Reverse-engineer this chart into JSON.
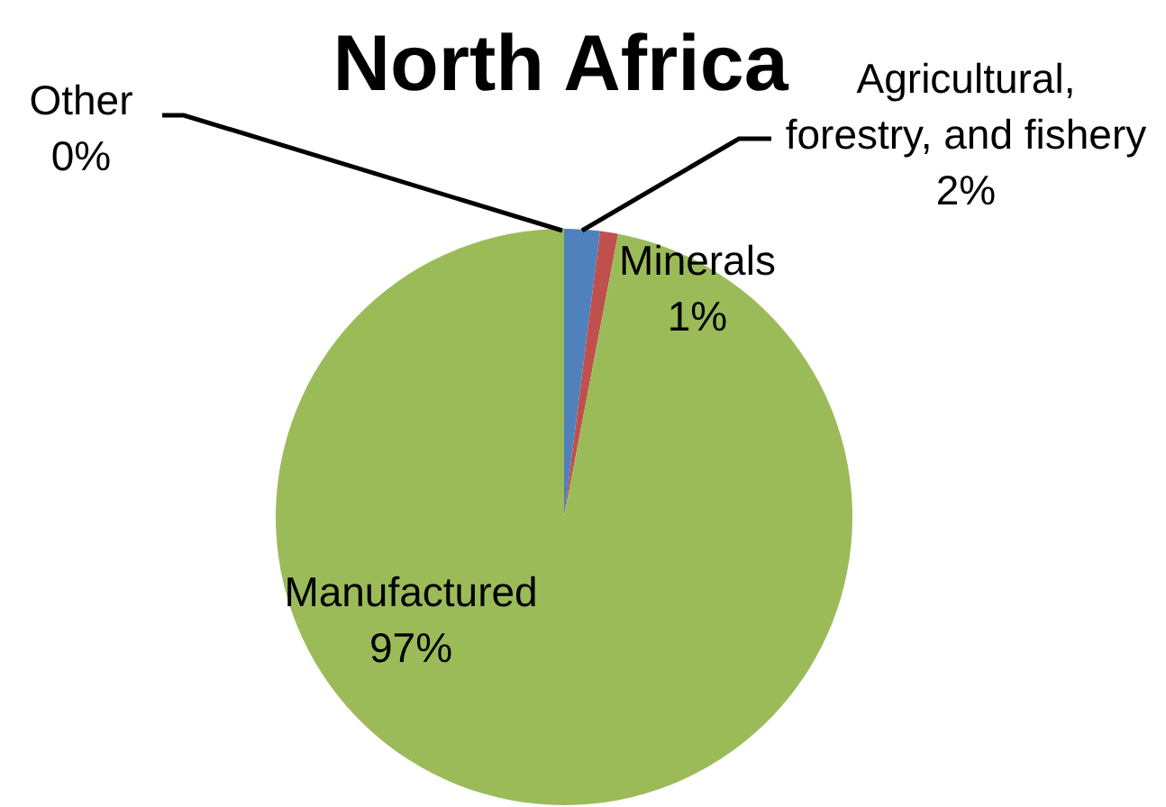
{
  "chart_data": {
    "type": "pie",
    "title": "North Africa",
    "categories": [
      "Other",
      "Agricultural, forestry, and fishery",
      "Minerals",
      "Manufactured"
    ],
    "values": [
      0,
      2,
      1,
      97
    ],
    "colors": [
      "#8064a2",
      "#4f81bd",
      "#c0504d",
      "#9bbb59"
    ],
    "value_labels": [
      "0%",
      "2%",
      "1%",
      "97%"
    ],
    "legend": false
  }
}
